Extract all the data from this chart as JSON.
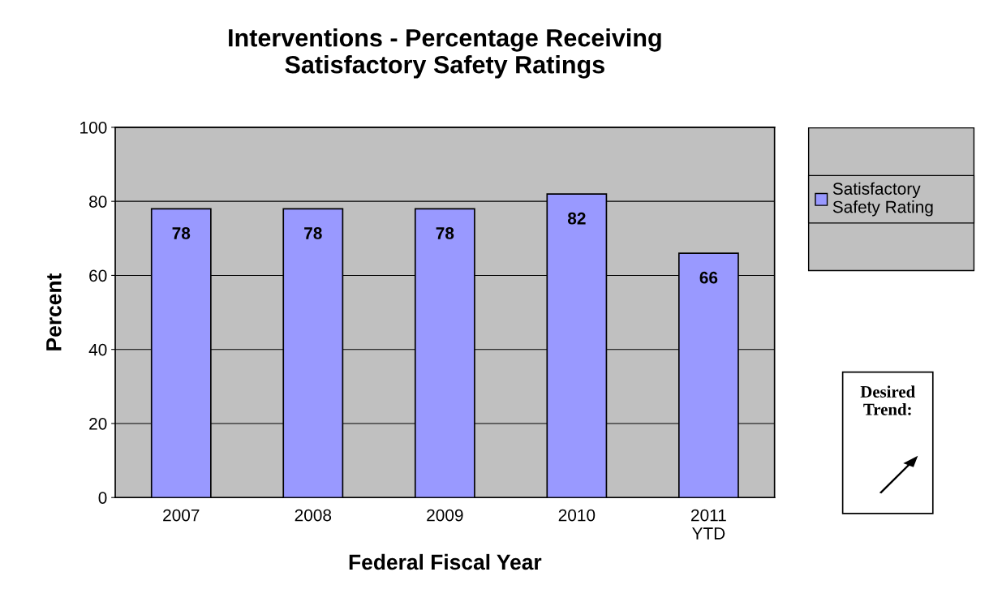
{
  "chart_data": {
    "type": "bar",
    "title": "Interventions - Percentage Receiving\nSatisfactory Safety Ratings",
    "xlabel": "Federal Fiscal Year",
    "ylabel": "Percent",
    "categories": [
      "2007",
      "2008",
      "2009",
      "2010",
      "2011\nYTD"
    ],
    "series": [
      {
        "name": "Satisfactory\nSafety Rating",
        "color": "#9999ff",
        "values": [
          78,
          78,
          78,
          82,
          66
        ]
      }
    ],
    "ylim": [
      0,
      100
    ],
    "yticks": [
      0,
      20,
      40,
      60,
      80,
      100
    ],
    "grid": "y",
    "legend": "right",
    "data_labels": true,
    "annotations": [
      "Desired\nTrend:"
    ]
  }
}
